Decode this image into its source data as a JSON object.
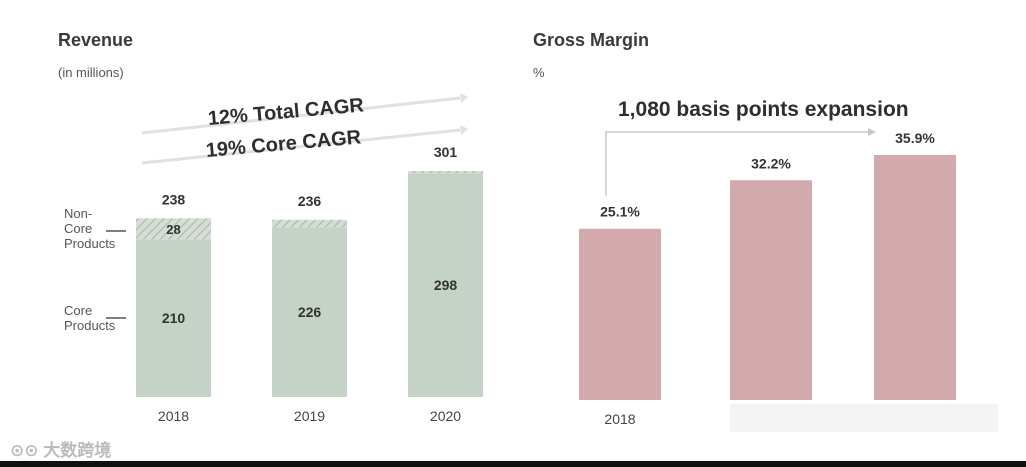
{
  "chart_data": [
    {
      "type": "bar",
      "title": "Revenue",
      "subtitle": "(in millions)",
      "categories": [
        "2018",
        "2019",
        "2020"
      ],
      "series": [
        {
          "name": "Core Products",
          "values": [
            210,
            226,
            298
          ]
        },
        {
          "name": "Non-Core Products",
          "values": [
            28,
            10,
            3
          ]
        }
      ],
      "totals": [
        238,
        236,
        301
      ],
      "segment_labels_core": [
        "210",
        "226",
        "298"
      ],
      "segment_labels_noncore": [
        "28",
        "",
        ""
      ],
      "total_labels": [
        "238",
        "236",
        "301"
      ],
      "annotations": [
        "12% Total CAGR",
        "19% Core CAGR"
      ],
      "side_labels": {
        "noncore": [
          "Non-",
          "Core",
          "Products"
        ],
        "core": [
          "Core",
          "Products"
        ]
      },
      "ylim": [
        0,
        320
      ],
      "colors": {
        "core": "#c5d3c6",
        "noncore": "#b9c7ba",
        "arrow": "#d9dfd9"
      }
    },
    {
      "type": "bar",
      "title": "Gross Margin",
      "subtitle": "%",
      "categories": [
        "2018",
        "",
        ""
      ],
      "values": [
        25.1,
        32.2,
        35.9
      ],
      "value_labels": [
        "25.1%",
        "32.2%",
        "35.9%"
      ],
      "annotations": [
        "1,080 basis points expansion"
      ],
      "ylim": [
        0,
        40
      ],
      "colors": {
        "bar": "#d2a9ac",
        "arrow": "#cccccc"
      }
    }
  ],
  "watermark": "大数跨境"
}
